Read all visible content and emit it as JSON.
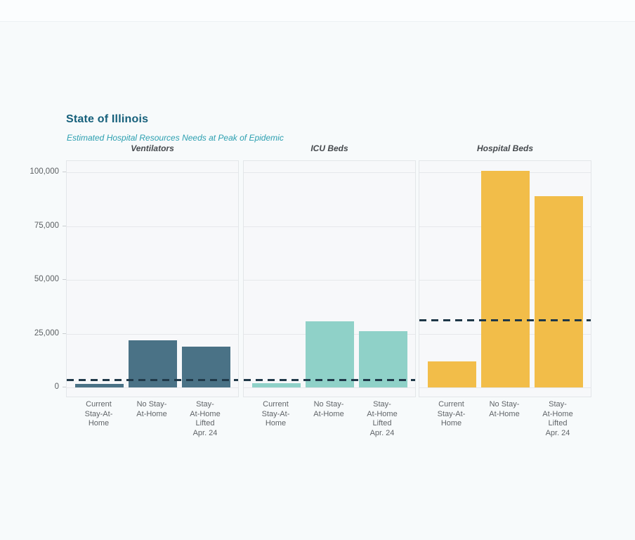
{
  "header": {
    "title": "State of Illinois",
    "subtitle": "Estimated Hospital Resources Needs at Peak of Epidemic"
  },
  "chart_data": {
    "type": "bar",
    "title": "State of Illinois",
    "subtitle": "Estimated Hospital Resources Needs at Peak of Epidemic",
    "categories": [
      "Current Stay-At-Home",
      "No Stay-At-Home",
      "Stay-At-Home Lifted Apr. 24"
    ],
    "category_label_lines": [
      [
        "Current",
        "Stay-At-",
        "Home"
      ],
      [
        "No Stay-",
        "At-Home"
      ],
      [
        "Stay-",
        "At-Home",
        "Lifted",
        "Apr. 24"
      ]
    ],
    "y_ticks": [
      0,
      25000,
      50000,
      75000,
      100000
    ],
    "y_tick_labels": [
      "0",
      "25,000",
      "50,000",
      "75,000",
      "100,000"
    ],
    "ylim": [
      0,
      105500
    ],
    "grid": true,
    "legend": "none",
    "panels": [
      {
        "title": "Ventilators",
        "bar_color": "#4a7286",
        "values": [
          1800,
          22200,
          19000
        ],
        "capacity_line": 3500
      },
      {
        "title": "ICU Beds",
        "bar_color": "#8fd1c8",
        "values": [
          2000,
          30800,
          26200
        ],
        "capacity_line": 3500
      },
      {
        "title": "Hospital Beds",
        "bar_color": "#f2bd49",
        "values": [
          12300,
          100700,
          89000
        ],
        "capacity_line": 31500
      }
    ],
    "capacity_line_color": "#1f3848",
    "capacity_line_style": "dashed",
    "colors": {
      "page_bg": "#f7fafb",
      "panel_bg": "#f7f8fa",
      "panel_border": "#e3e6e9",
      "gridline": "#e6e8eb",
      "title": "#16607b",
      "subtitle": "#2b9fb0",
      "panel_title": "#45494d",
      "axis_text": "#606468"
    }
  }
}
